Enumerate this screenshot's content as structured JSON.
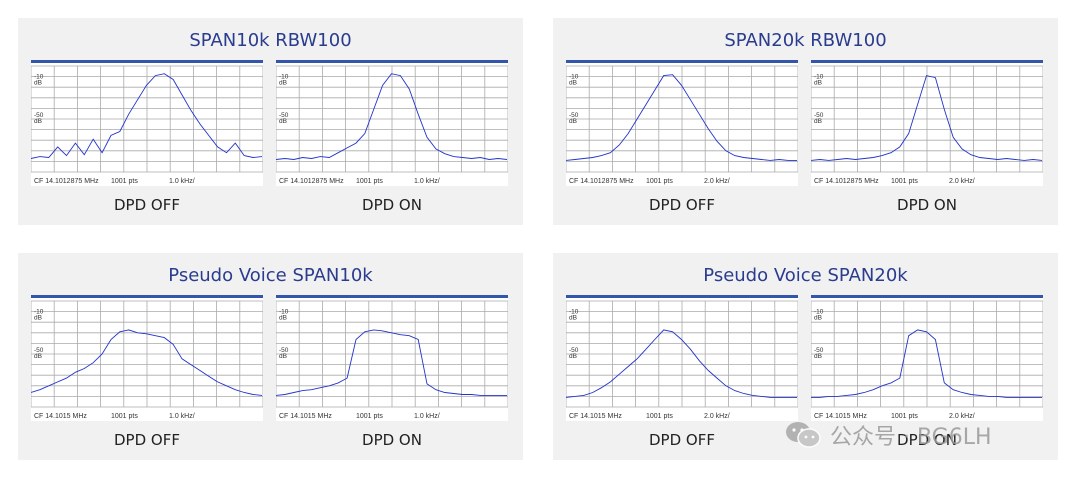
{
  "panels": [
    {
      "title": "SPAN10k  RBW100",
      "captions": [
        "DPD OFF",
        "DPD ON"
      ]
    },
    {
      "title": "SPAN20k  RBW100",
      "captions": [
        "DPD OFF",
        "DPD ON"
      ]
    },
    {
      "title": "Pseudo Voice  SPAN10k",
      "captions": [
        "DPD OFF",
        "DPD ON"
      ]
    },
    {
      "title": "Pseudo Voice  SPAN20k",
      "captions": [
        "DPD OFF",
        "DPD ON"
      ]
    }
  ],
  "watermark": {
    "text": "公众号 · BG6LH",
    "icon": "wechat-icon"
  },
  "colors": {
    "title": "#2a3c8e",
    "trace": "#2233cc",
    "grid": "#aaaaaa",
    "topbar": "#3355aa"
  },
  "chart_data": [
    {
      "type": "line",
      "title": "DPD OFF",
      "ylabel_ticks": [
        "-10 dB",
        "-50 dB"
      ],
      "ylim": [
        -110,
        0
      ],
      "center_freq": "CF 14.1012875 MHz",
      "points": "1001 pts",
      "div": "1.0 kHz/",
      "series": [
        {
          "values": [
            -96,
            -94,
            -95,
            -84,
            -93,
            -80,
            -92,
            -76,
            -90,
            -72,
            -68,
            -50,
            -35,
            -20,
            -10,
            -8,
            -14,
            -30,
            -46,
            -60,
            -72,
            -84,
            -90,
            -80,
            -93,
            -95,
            -94
          ]
        }
      ]
    },
    {
      "type": "line",
      "title": "DPD ON",
      "ylabel_ticks": [
        "-10 dB",
        "-50 dB"
      ],
      "ylim": [
        -110,
        0
      ],
      "center_freq": "CF 14.1012875 MHz",
      "points": "1001 pts",
      "div": "1.0 kHz/",
      "series": [
        {
          "values": [
            -97,
            -96,
            -97,
            -95,
            -96,
            -94,
            -95,
            -90,
            -85,
            -80,
            -70,
            -45,
            -20,
            -8,
            -10,
            -24,
            -50,
            -74,
            -86,
            -91,
            -94,
            -95,
            -96,
            -95,
            -97,
            -96,
            -97
          ]
        }
      ]
    },
    {
      "type": "line",
      "title": "DPD OFF",
      "ylabel_ticks": [
        "-10 dB",
        "-50 dB"
      ],
      "ylim": [
        -110,
        0
      ],
      "center_freq": "CF 14.1012875 MHz",
      "points": "1001 pts",
      "div": "2.0 kHz/",
      "series": [
        {
          "values": [
            -98,
            -97,
            -96,
            -95,
            -93,
            -90,
            -82,
            -70,
            -55,
            -40,
            -25,
            -10,
            -9,
            -20,
            -35,
            -50,
            -65,
            -78,
            -88,
            -93,
            -95,
            -96,
            -97,
            -98,
            -97,
            -98,
            -98
          ]
        }
      ]
    },
    {
      "type": "line",
      "title": "DPD ON",
      "ylabel_ticks": [
        "-10 dB",
        "-50 dB"
      ],
      "ylim": [
        -110,
        0
      ],
      "center_freq": "CF 14.1012875 MHz",
      "points": "1001 pts",
      "div": "2.0 kHz/",
      "series": [
        {
          "values": [
            -98,
            -97,
            -98,
            -97,
            -96,
            -97,
            -96,
            -95,
            -93,
            -90,
            -84,
            -70,
            -40,
            -10,
            -12,
            -45,
            -74,
            -86,
            -92,
            -95,
            -96,
            -97,
            -96,
            -97,
            -98,
            -97,
            -98
          ]
        }
      ]
    },
    {
      "type": "line",
      "title": "DPD OFF",
      "ylabel_ticks": [
        "-10 dB",
        "-50 dB"
      ],
      "ylim": [
        -110,
        0
      ],
      "center_freq": "CF 14.1015 MHz",
      "points": "1001 pts",
      "div": "1.0 kHz/",
      "series": [
        {
          "values": [
            -95,
            -92,
            -88,
            -84,
            -80,
            -74,
            -70,
            -64,
            -55,
            -40,
            -32,
            -30,
            -33,
            -34,
            -36,
            -38,
            -45,
            -60,
            -66,
            -72,
            -78,
            -84,
            -88,
            -92,
            -95,
            -97,
            -98
          ]
        }
      ]
    },
    {
      "type": "line",
      "title": "DPD ON",
      "ylabel_ticks": [
        "-10 dB",
        "-50 dB"
      ],
      "ylim": [
        -110,
        0
      ],
      "center_freq": "CF 14.1015 MHz",
      "points": "1001 pts",
      "div": "1.0 kHz/",
      "series": [
        {
          "values": [
            -98,
            -97,
            -95,
            -93,
            -92,
            -90,
            -88,
            -85,
            -80,
            -40,
            -32,
            -30,
            -31,
            -33,
            -35,
            -36,
            -40,
            -86,
            -92,
            -95,
            -96,
            -97,
            -97,
            -98,
            -98,
            -98,
            -98
          ]
        }
      ]
    },
    {
      "type": "line",
      "title": "DPD OFF",
      "ylabel_ticks": [
        "-10 dB",
        "-50 dB"
      ],
      "ylim": [
        -110,
        0
      ],
      "center_freq": "CF 14.1015 MHz",
      "points": "1001 pts",
      "div": "2.0 kHz/",
      "series": [
        {
          "values": [
            -100,
            -99,
            -98,
            -95,
            -90,
            -84,
            -76,
            -68,
            -60,
            -50,
            -40,
            -30,
            -32,
            -40,
            -50,
            -62,
            -72,
            -80,
            -88,
            -93,
            -96,
            -98,
            -99,
            -100,
            -100,
            -100,
            -100
          ]
        }
      ]
    },
    {
      "type": "line",
      "title": "DPD ON",
      "ylabel_ticks": [
        "-10 dB",
        "-50 dB"
      ],
      "ylim": [
        -110,
        0
      ],
      "center_freq": "CF 14.1015 MHz",
      "points": "1001 pts",
      "div": "2.0 kHz/",
      "series": [
        {
          "values": [
            -100,
            -100,
            -99,
            -99,
            -98,
            -97,
            -95,
            -92,
            -88,
            -85,
            -80,
            -36,
            -30,
            -32,
            -40,
            -85,
            -92,
            -95,
            -97,
            -98,
            -99,
            -99,
            -100,
            -100,
            -100,
            -100,
            -100
          ]
        }
      ]
    }
  ]
}
